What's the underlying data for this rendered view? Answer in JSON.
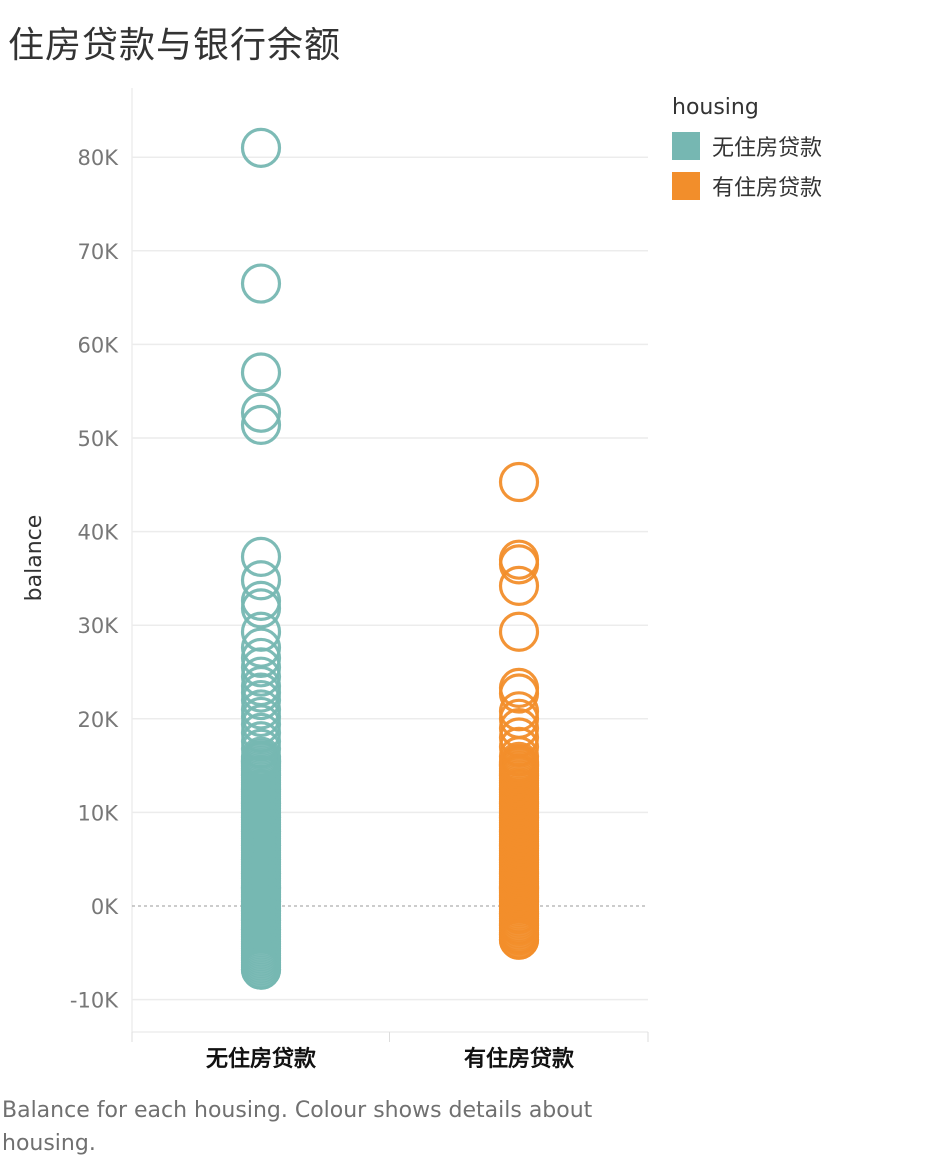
{
  "title": "住房贷款与银行余额",
  "caption": "Balance for each housing.  Colour shows details about housing.",
  "legend": {
    "title": "housing",
    "items": [
      {
        "label": "无住房贷款",
        "color": "#76b7b2"
      },
      {
        "label": "有住房贷款",
        "color": "#f28e2b"
      }
    ]
  },
  "chart_data": {
    "type": "scatter",
    "title": "住房贷款与银行余额",
    "xlabel": "",
    "ylabel": "balance",
    "ylim": [
      -12000,
      88000
    ],
    "yticks": [
      -10000,
      0,
      10000,
      20000,
      30000,
      40000,
      50000,
      60000,
      70000,
      80000
    ],
    "ytick_labels": [
      "-10K",
      "0K",
      "10K",
      "20K",
      "30K",
      "40K",
      "50K",
      "60K",
      "70K",
      "80K"
    ],
    "categories": [
      "无住房贷款",
      "有住房贷款"
    ],
    "grid": true,
    "marker": "open-circle",
    "legend_position": "top-right",
    "series": [
      {
        "name": "无住房贷款",
        "color": "#76b7b2",
        "category": "无住房贷款",
        "values": [
          81000,
          66500,
          57000,
          52700,
          51400,
          37300,
          34800,
          32600,
          31800,
          29300,
          27600,
          26500,
          25500,
          24500,
          23500,
          22800,
          22000,
          21000,
          20200,
          19400,
          18500,
          17600,
          16800,
          15500,
          14000,
          12500,
          11000,
          9500,
          8000,
          6500,
          5000,
          3500,
          2000,
          500,
          -500,
          -1500,
          -2500,
          -6800
        ]
      },
      {
        "name": "有住房贷款",
        "color": "#f28e2b",
        "category": "有住房贷款",
        "values": [
          45300,
          37000,
          36500,
          34200,
          29300,
          23300,
          22700,
          20800,
          20000,
          19000,
          18000,
          17000,
          16000,
          15000,
          14000,
          12500,
          11000,
          9500,
          8000,
          6500,
          5000,
          3500,
          2000,
          500,
          -800,
          -2000,
          -3000,
          -3600
        ]
      }
    ]
  }
}
